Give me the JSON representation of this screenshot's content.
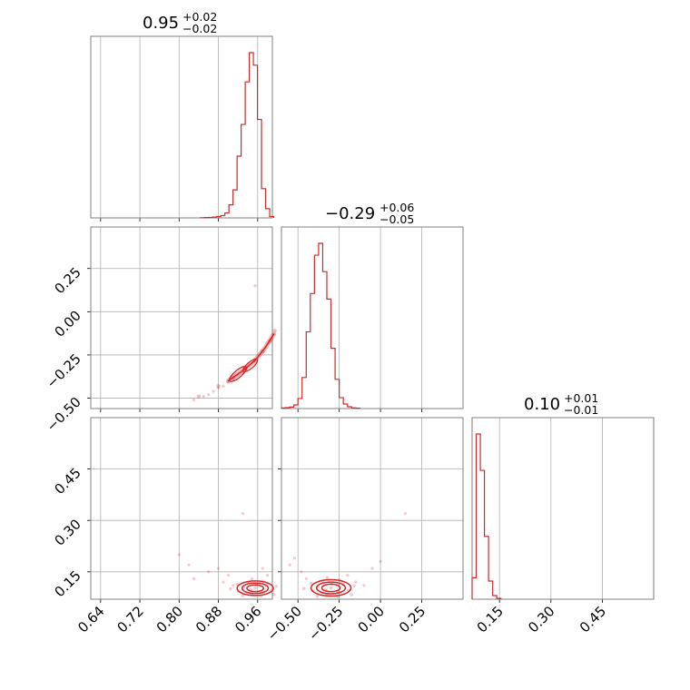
{
  "colors": {
    "series": "#d62728",
    "grid": "#b0b0b0",
    "frame": "#808080"
  },
  "chart_data": [
    {
      "type": "histogram",
      "panel": "1-1",
      "title": {
        "value": "0.95",
        "plus": "+0.02",
        "minus": "−0.02"
      },
      "xlim": [
        0.62,
        0.99
      ],
      "bin_edges": [
        0.8434,
        0.8517,
        0.86,
        0.8683,
        0.8766,
        0.8849,
        0.8932,
        0.9015,
        0.9098,
        0.9181,
        0.9264,
        0.9347,
        0.943,
        0.9513,
        0.9596,
        0.9679,
        0.9762,
        0.9845,
        0.9928
      ],
      "counts": [
        1,
        2,
        3,
        5,
        8,
        14,
        30,
        78,
        168,
        370,
        560,
        815,
        990,
        915,
        590,
        175,
        55,
        8
      ],
      "grid": true
    },
    {
      "type": "histogram",
      "panel": "2-2",
      "title": {
        "value": "−0.29",
        "plus": "+0.06",
        "minus": "−0.05"
      },
      "xlim": [
        -0.6,
        0.5
      ],
      "bin_edges": [
        -0.6,
        -0.575,
        -0.55,
        -0.525,
        -0.5,
        -0.475,
        -0.45,
        -0.425,
        -0.4,
        -0.375,
        -0.35,
        -0.325,
        -0.3,
        -0.275,
        -0.25,
        -0.225,
        -0.2,
        -0.175,
        -0.15,
        -0.125
      ],
      "counts": [
        3,
        5,
        8,
        20,
        55,
        170,
        420,
        630,
        840,
        905,
        750,
        600,
        330,
        160,
        60,
        25,
        10,
        4,
        2
      ],
      "grid": true
    },
    {
      "type": "histogram",
      "panel": "3-3",
      "title": {
        "value": "0.10",
        "plus": "+0.01",
        "minus": "−0.01"
      },
      "xlim": [
        0.07,
        0.6
      ],
      "bin_edges": [
        0.07,
        0.082,
        0.094,
        0.106,
        0.118,
        0.13,
        0.142,
        0.154
      ],
      "counts": [
        130,
        1000,
        780,
        380,
        110,
        22,
        5
      ],
      "grid": true
    },
    {
      "type": "scatter",
      "panel": "2-1",
      "xlim": [
        0.62,
        0.99
      ],
      "ylim": [
        -0.56,
        0.49
      ],
      "yticks": [
        "0.25",
        "0.00",
        "−0.25",
        "−0.50"
      ],
      "scatter_sparse": [
        [
          0.83,
          -0.51
        ],
        [
          0.85,
          -0.49
        ],
        [
          0.86,
          -0.48
        ],
        [
          0.87,
          -0.46
        ],
        [
          0.88,
          -0.44
        ],
        [
          0.89,
          -0.43
        ],
        [
          0.9,
          -0.41
        ],
        [
          0.91,
          -0.39
        ],
        [
          0.92,
          -0.37
        ],
        [
          0.93,
          -0.35
        ],
        [
          0.955,
          0.15
        ]
      ],
      "contour_center": [
        0.955,
        -0.25
      ],
      "grid": true
    },
    {
      "type": "scatter",
      "panel": "3-1",
      "xlim": [
        0.62,
        0.99
      ],
      "ylim": [
        0.07,
        0.6
      ],
      "xticks": [
        "0.64",
        "0.72",
        "0.80",
        "0.88",
        "0.96"
      ],
      "yticks": [
        "0.15",
        "0.30",
        "0.45"
      ],
      "scatter_sparse": [
        [
          0.8,
          0.2
        ],
        [
          0.82,
          0.17
        ],
        [
          0.83,
          0.13
        ],
        [
          0.86,
          0.15
        ],
        [
          0.88,
          0.16
        ],
        [
          0.89,
          0.12
        ],
        [
          0.9,
          0.14
        ],
        [
          0.91,
          0.11
        ],
        [
          0.93,
          0.32
        ],
        [
          0.97,
          0.16
        ],
        [
          0.98,
          0.14
        ]
      ],
      "contour_center": [
        0.955,
        0.102
      ],
      "grid": true
    },
    {
      "type": "scatter",
      "panel": "3-2",
      "xlim": [
        -0.6,
        0.5
      ],
      "ylim": [
        0.07,
        0.6
      ],
      "xticks": [
        "−0.50",
        "−0.25",
        "0.00",
        "0.25"
      ],
      "scatter_sparse": [
        [
          -0.55,
          0.17
        ],
        [
          -0.52,
          0.19
        ],
        [
          -0.48,
          0.15
        ],
        [
          -0.45,
          0.13
        ],
        [
          -0.2,
          0.14
        ],
        [
          -0.15,
          0.12
        ],
        [
          -0.1,
          0.11
        ],
        [
          -0.05,
          0.16
        ],
        [
          0.0,
          0.18
        ],
        [
          0.15,
          0.32
        ]
      ],
      "contour_center": [
        -0.3,
        0.103
      ],
      "grid": true
    }
  ]
}
